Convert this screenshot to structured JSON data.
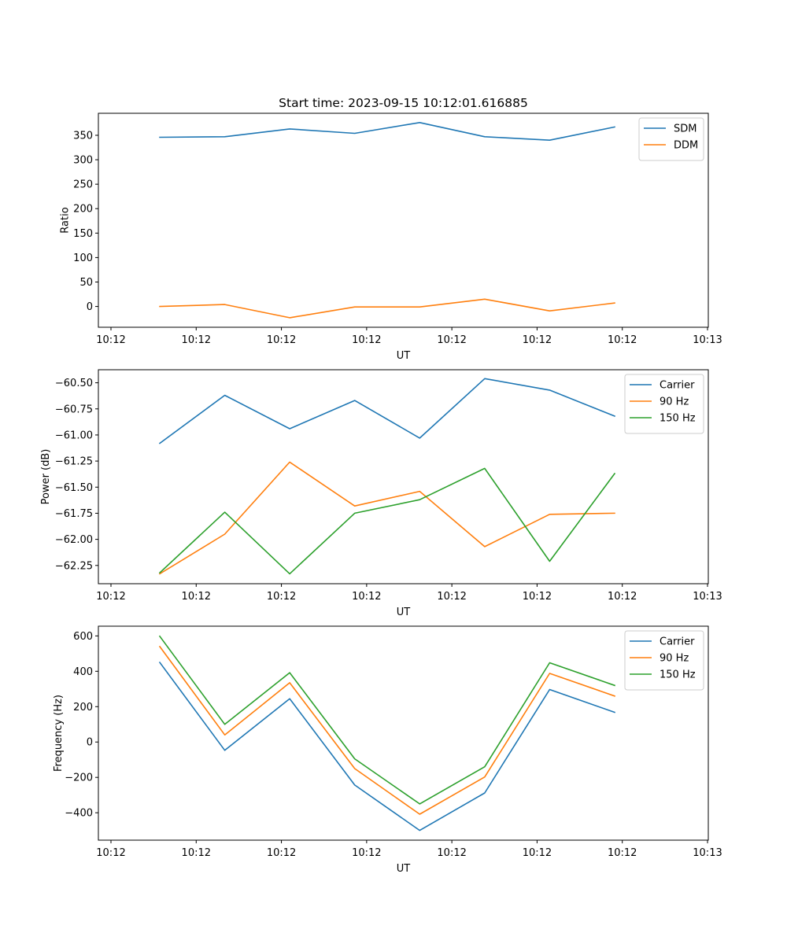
{
  "chart_data": [
    {
      "type": "line",
      "title": "Start time: 2023-09-15 10:12:01.616885",
      "xlabel": "UT",
      "ylabel": "Ratio",
      "x_tick_labels": [
        "10:12",
        "10:12",
        "10:12",
        "10:12",
        "10:12",
        "10:12",
        "10:12",
        "10:13"
      ],
      "y_ticks": [
        0,
        50,
        100,
        150,
        200,
        250,
        300,
        350
      ],
      "y_tick_labels": [
        "0",
        "50",
        "100",
        "150",
        "200",
        "250",
        "300",
        "350"
      ],
      "ylim": [
        -42.5,
        395
      ],
      "legend_position": "upper-right",
      "series": [
        {
          "name": "SDM",
          "color": "#1f77b4",
          "values": [
            346,
            347,
            363,
            354,
            376,
            347,
            340,
            367
          ]
        },
        {
          "name": "DDM",
          "color": "#ff7f0e",
          "values": [
            0,
            4,
            -23,
            -1,
            -1,
            15,
            -9,
            7
          ]
        }
      ]
    },
    {
      "type": "line",
      "title": "",
      "xlabel": "UT",
      "ylabel": "Power (dB)",
      "x_tick_labels": [
        "10:12",
        "10:12",
        "10:12",
        "10:12",
        "10:12",
        "10:12",
        "10:12",
        "10:13"
      ],
      "y_ticks": [
        -62.25,
        -62.0,
        -61.75,
        -61.5,
        -61.25,
        -61.0,
        -60.75,
        -60.5
      ],
      "y_tick_labels": [
        "−62.25",
        "−62.00",
        "−61.75",
        "−61.50",
        "−61.25",
        "−61.00",
        "−60.75",
        "−60.50"
      ],
      "ylim": [
        -62.425,
        -60.375
      ],
      "legend_position": "upper-right",
      "series": [
        {
          "name": "Carrier",
          "color": "#1f77b4",
          "values": [
            -61.08,
            -60.62,
            -60.94,
            -60.67,
            -61.03,
            -60.46,
            -60.57,
            -60.82
          ]
        },
        {
          "name": "90 Hz",
          "color": "#ff7f0e",
          "values": [
            -62.33,
            -61.95,
            -61.26,
            -61.68,
            -61.54,
            -62.07,
            -61.76,
            -61.75
          ]
        },
        {
          "name": "150 Hz",
          "color": "#2ca02c",
          "values": [
            -62.32,
            -61.74,
            -62.33,
            -61.75,
            -61.62,
            -61.32,
            -62.21,
            -61.37
          ]
        }
      ]
    },
    {
      "type": "line",
      "title": "",
      "xlabel": "UT",
      "ylabel": "Frequency (Hz)",
      "x_tick_labels": [
        "10:12",
        "10:12",
        "10:12",
        "10:12",
        "10:12",
        "10:12",
        "10:12",
        "10:13"
      ],
      "y_ticks": [
        -400,
        -200,
        0,
        200,
        400,
        600
      ],
      "y_tick_labels": [
        "−400",
        "−200",
        "0",
        "200",
        "400",
        "600"
      ],
      "ylim": [
        -555,
        655
      ],
      "legend_position": "upper-right",
      "series": [
        {
          "name": "Carrier",
          "color": "#1f77b4",
          "values": [
            450,
            -47,
            245,
            -243,
            -500,
            -288,
            297,
            168
          ]
        },
        {
          "name": "90 Hz",
          "color": "#ff7f0e",
          "values": [
            540,
            40,
            335,
            -150,
            -408,
            -198,
            388,
            260
          ]
        },
        {
          "name": "150 Hz",
          "color": "#2ca02c",
          "values": [
            598,
            100,
            392,
            -95,
            -350,
            -140,
            448,
            320
          ]
        }
      ]
    }
  ]
}
